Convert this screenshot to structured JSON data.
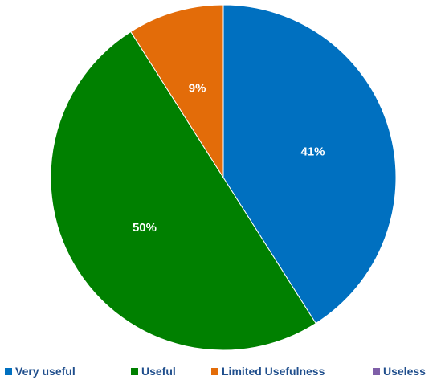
{
  "chart_data": {
    "type": "pie",
    "title": "",
    "categories": [
      "Very useful",
      "Useful",
      "Limited Usefulness",
      "Useless"
    ],
    "values": [
      41,
      50,
      9,
      0
    ],
    "labels": [
      "41%",
      "50%",
      "9%",
      ""
    ],
    "colors": [
      "#0070c0",
      "#008000",
      "#e36c09",
      "#7f5fa8"
    ],
    "start_angle_deg": 0,
    "direction": "clockwise",
    "legend_position": "bottom"
  }
}
